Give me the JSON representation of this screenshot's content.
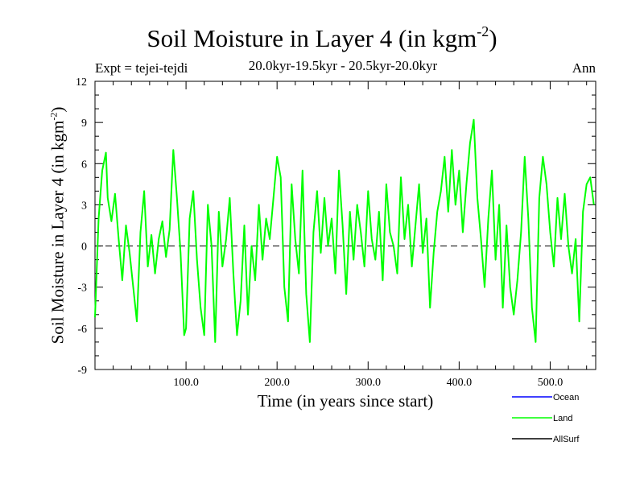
{
  "title": {
    "text": "Soil Moisture in Layer 4 (in kgm",
    "superscript": "-2",
    "close": ")"
  },
  "subtitle": "20.0kyr-19.5kyr - 20.5kyr-20.0kyr",
  "experiment_label": "Expt = tejei-tejdi",
  "season_label": "Ann",
  "colors": {
    "ocean": "#0000ff",
    "land": "#00ff00",
    "allsurf": "#000000",
    "axis": "#000000"
  },
  "chart_data": {
    "type": "line",
    "xlabel": "Time (in years since start)",
    "ylabel": {
      "text": "Soil Moisture in Layer 4 (in kgm",
      "superscript": "-2",
      "close": ")"
    },
    "xlim": [
      0,
      550
    ],
    "ylim": [
      -9,
      12
    ],
    "xticks": [
      100,
      200,
      300,
      400,
      500
    ],
    "xtick_labels": [
      "100.0",
      "200.0",
      "300.0",
      "400.0",
      "500.0"
    ],
    "xminor_step": 20,
    "yticks": [
      -9,
      -6,
      -3,
      0,
      3,
      6,
      9,
      12
    ],
    "ytick_labels": [
      "-9",
      "-6",
      "-3",
      "0",
      "3",
      "6",
      "9",
      "12"
    ],
    "yminor_step": 1,
    "zero_line": true,
    "legend": [
      "Ocean",
      "Land",
      "AllSurf"
    ],
    "series": [
      {
        "name": "Land",
        "color": "#00ff00",
        "x": [
          0,
          4,
          8,
          12,
          14,
          18,
          22,
          26,
          30,
          34,
          38,
          42,
          46,
          50,
          54,
          58,
          62,
          66,
          70,
          74,
          78,
          82,
          86,
          90,
          94,
          98,
          100,
          104,
          108,
          112,
          116,
          120,
          124,
          128,
          132,
          136,
          140,
          144,
          148,
          152,
          156,
          160,
          164,
          168,
          172,
          176,
          180,
          184,
          188,
          192,
          196,
          200,
          204,
          208,
          212,
          216,
          220,
          224,
          228,
          232,
          236,
          240,
          244,
          248,
          252,
          256,
          260,
          264,
          268,
          272,
          276,
          280,
          284,
          288,
          292,
          296,
          300,
          304,
          308,
          312,
          316,
          320,
          324,
          328,
          332,
          336,
          340,
          344,
          348,
          352,
          356,
          360,
          364,
          368,
          372,
          376,
          380,
          384,
          388,
          392,
          396,
          400,
          404,
          408,
          412,
          416,
          420,
          424,
          428,
          432,
          436,
          440,
          444,
          448,
          452,
          456,
          460,
          464,
          468,
          472,
          476,
          480,
          484,
          488,
          492,
          496,
          500,
          504,
          508,
          512,
          516,
          520,
          524,
          528,
          532,
          536,
          540,
          544,
          548
        ],
        "y": [
          -5.2,
          2.0,
          5.5,
          6.8,
          3.5,
          1.8,
          3.8,
          0.5,
          -2.5,
          1.5,
          -0.5,
          -3.0,
          -5.5,
          1.0,
          4.0,
          -1.5,
          0.8,
          -2.0,
          0.5,
          1.8,
          -0.8,
          1.2,
          7.0,
          3.5,
          -0.5,
          -6.5,
          -6.0,
          2.0,
          4.0,
          -1.0,
          -4.5,
          -6.5,
          3.0,
          0.0,
          -7.0,
          2.5,
          -1.5,
          0.5,
          3.5,
          -2.0,
          -6.5,
          -4.0,
          1.5,
          -5.0,
          0.0,
          -2.5,
          3.0,
          -1.0,
          2.0,
          0.5,
          3.5,
          6.5,
          5.0,
          -3.0,
          -5.5,
          4.5,
          0.5,
          -2.0,
          5.5,
          -3.5,
          -7.0,
          1.0,
          4.0,
          -0.5,
          3.5,
          0.0,
          2.0,
          -2.0,
          5.5,
          1.5,
          -3.5,
          2.5,
          -1.0,
          3.0,
          1.0,
          -1.5,
          4.0,
          0.5,
          -1.0,
          2.5,
          -2.5,
          4.5,
          1.0,
          0.0,
          -2.0,
          5.0,
          0.5,
          3.0,
          -1.5,
          1.5,
          4.5,
          -0.5,
          2.0,
          -4.5,
          -0.5,
          2.5,
          4.0,
          6.5,
          2.5,
          7.0,
          3.0,
          5.5,
          1.0,
          4.5,
          7.5,
          9.2,
          3.5,
          0.5,
          -3.0,
          2.0,
          5.5,
          -1.0,
          3.0,
          -4.5,
          1.5,
          -3.0,
          -5.0,
          -2.5,
          1.0,
          6.5,
          2.0,
          -4.5,
          -7.0,
          3.5,
          6.5,
          4.5,
          1.0,
          -1.5,
          3.5,
          0.5,
          3.8,
          0.0,
          -2.0,
          0.5,
          -5.5,
          2.5,
          4.5,
          5.0,
          3.0
        ]
      },
      {
        "name": "Ocean",
        "color": "#0000ff",
        "x": [],
        "y": []
      },
      {
        "name": "AllSurf",
        "color": "#000000",
        "x": [],
        "y": []
      }
    ]
  }
}
